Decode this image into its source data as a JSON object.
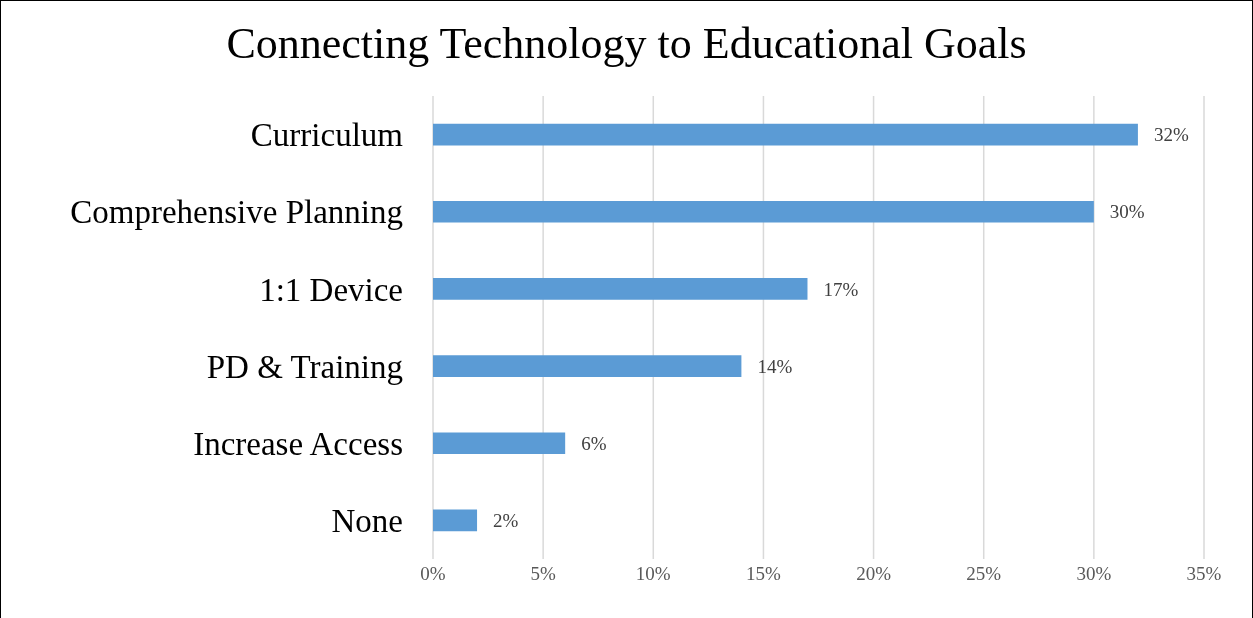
{
  "chart_data": {
    "type": "bar",
    "orientation": "horizontal",
    "title": "Connecting Technology to Educational Goals",
    "categories": [
      "Curriculum",
      "Comprehensive Planning",
      "1:1 Device",
      "PD & Training",
      "Increase Access",
      "None"
    ],
    "values": [
      32,
      30,
      17,
      14,
      6,
      2
    ],
    "value_labels": [
      "32%",
      "30%",
      "17%",
      "14%",
      "6%",
      "2%"
    ],
    "color": "#5b9bd5",
    "xlim": [
      0,
      35
    ],
    "xticks": [
      {
        "value": 0,
        "label": "0%"
      },
      {
        "value": 5,
        "label": "5%"
      },
      {
        "value": 10,
        "label": "10%"
      },
      {
        "value": 15,
        "label": "15%"
      },
      {
        "value": 20,
        "label": "20%"
      },
      {
        "value": 25,
        "label": "25%"
      },
      {
        "value": 30,
        "label": "30%"
      },
      {
        "value": 35,
        "label": "35%"
      }
    ],
    "grid": "x"
  }
}
